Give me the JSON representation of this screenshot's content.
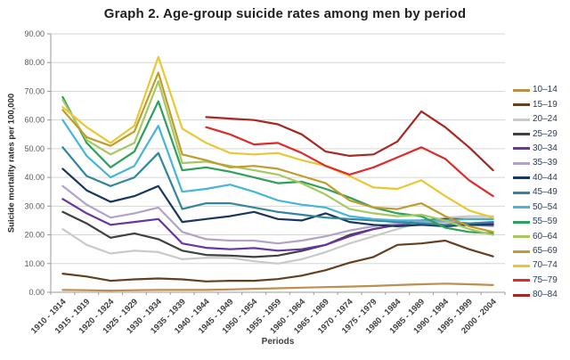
{
  "chart_data": {
    "type": "line",
    "title": "Graph 2. Age-group suicide rates among men by period",
    "xlabel": "Periods",
    "ylabel": "Suicide mortality rates per 100,000",
    "ylim": [
      0,
      90
    ],
    "grid": true,
    "legend_position": "right",
    "y_tick_labels": [
      "0.00",
      "10.00",
      "20.00",
      "30.00",
      "40.00",
      "50.00",
      "60.00",
      "70.00",
      "80.00",
      "90.00"
    ],
    "categories": [
      "1910 - 1914",
      "1915 - 1919",
      "1920 - 1924",
      "1925 - 1929",
      "1930 - 1934",
      "1935 - 1939",
      "1940 - 1944",
      "1945 - 1949",
      "1950 - 1954",
      "1955 - 1959",
      "1960 - 1964",
      "1965 - 1969",
      "1970 - 1974",
      "1975 - 1979",
      "1980 - 1984",
      "1985 - 1989",
      "1990 - 1994",
      "1995 - 1999",
      "2000 - 2004"
    ],
    "series": [
      {
        "name": "10–14",
        "color": "#bd8e4e",
        "values": [
          0.8,
          0.7,
          0.6,
          0.7,
          0.8,
          0.8,
          0.8,
          1.0,
          1.2,
          1.4,
          1.6,
          1.8,
          2.0,
          2.2,
          2.5,
          2.8,
          3.0,
          2.8,
          2.5
        ]
      },
      {
        "name": "15–19",
        "color": "#63401f",
        "values": [
          6.5,
          5.5,
          4.0,
          4.5,
          4.8,
          4.5,
          3.8,
          4.0,
          4.0,
          4.6,
          5.8,
          7.7,
          10.3,
          12.3,
          16.5,
          17.0,
          18.0,
          15.0,
          12.5
        ]
      },
      {
        "name": "20–24",
        "color": "#c9c9c9",
        "values": [
          22.0,
          16.5,
          13.5,
          14.5,
          14.0,
          11.5,
          12.0,
          12.0,
          10.8,
          10.0,
          11.5,
          14.0,
          17.0,
          19.5,
          22.0,
          24.5,
          26.0,
          26.5,
          26.5
        ]
      },
      {
        "name": "25–29",
        "color": "#404040",
        "values": [
          28.0,
          24.0,
          19.0,
          20.5,
          18.5,
          14.5,
          13.0,
          12.8,
          12.3,
          12.8,
          14.4,
          16.5,
          20.0,
          22.0,
          23.5,
          25.0,
          25.5,
          25.5,
          25.5
        ]
      },
      {
        "name": "30–34",
        "color": "#6a35a0",
        "values": [
          32.5,
          27.5,
          23.5,
          24.5,
          25.5,
          17.0,
          15.5,
          15.0,
          15.4,
          14.5,
          15.0,
          16.5,
          19.5,
          22.0,
          23.5,
          24.5,
          24.5,
          24.0,
          24.0
        ]
      },
      {
        "name": "35–39",
        "color": "#b3a2c7",
        "values": [
          37.0,
          30.5,
          26.0,
          27.5,
          29.5,
          21.0,
          18.5,
          18.0,
          18.0,
          17.0,
          18.0,
          19.5,
          21.5,
          23.0,
          24.0,
          24.5,
          24.5,
          23.5,
          23.0
        ]
      },
      {
        "name": "40–44",
        "color": "#17375d",
        "values": [
          43.0,
          35.5,
          31.5,
          33.5,
          37.0,
          24.5,
          25.5,
          26.5,
          28.0,
          25.5,
          25.0,
          27.5,
          24.5,
          23.5,
          23.0,
          23.5,
          23.0,
          23.5,
          23.5
        ]
      },
      {
        "name": "45–49",
        "color": "#31859c",
        "values": [
          50.5,
          40.5,
          37.0,
          40.0,
          48.5,
          29.0,
          31.0,
          31.0,
          29.5,
          28.0,
          27.0,
          26.0,
          25.5,
          25.0,
          24.5,
          24.0,
          23.5,
          24.0,
          24.5
        ]
      },
      {
        "name": "50–54",
        "color": "#45b5d8",
        "values": [
          60.0,
          47.5,
          40.0,
          44.0,
          58.0,
          35.0,
          36.0,
          37.5,
          35.0,
          32.0,
          30.5,
          29.5,
          26.5,
          25.5,
          25.0,
          25.0,
          25.0,
          25.5,
          25.5
        ]
      },
      {
        "name": "55–59",
        "color": "#2fa05a",
        "values": [
          68.0,
          52.0,
          43.5,
          49.0,
          66.5,
          42.5,
          43.5,
          42.0,
          40.0,
          38.0,
          38.5,
          36.0,
          33.0,
          29.5,
          27.5,
          26.5,
          22.5,
          21.0,
          20.5
        ]
      },
      {
        "name": "60–64",
        "color": "#a6c85f",
        "values": [
          67.0,
          53.0,
          48.0,
          52.0,
          73.5,
          45.0,
          45.5,
          44.0,
          42.5,
          41.0,
          38.0,
          34.0,
          29.0,
          27.5,
          26.5,
          27.0,
          25.0,
          22.0,
          20.0
        ]
      },
      {
        "name": "65–69",
        "color": "#c09c2c",
        "values": [
          63.5,
          54.0,
          51.0,
          56.0,
          76.5,
          48.0,
          46.0,
          43.5,
          44.0,
          43.0,
          40.5,
          38.0,
          32.0,
          29.5,
          29.0,
          31.0,
          26.5,
          23.0,
          21.0
        ]
      },
      {
        "name": "70–74",
        "color": "#e8c835",
        "values": [
          64.5,
          57.5,
          52.0,
          58.0,
          82.0,
          57.0,
          52.0,
          48.5,
          48.0,
          48.5,
          46.0,
          44.0,
          40.5,
          36.5,
          36.0,
          39.0,
          33.5,
          28.5,
          26.0
        ]
      },
      {
        "name": "75–79",
        "color": "#dd2c2c",
        "values": [
          null,
          null,
          null,
          null,
          null,
          null,
          57.5,
          55.0,
          51.5,
          52.0,
          48.5,
          44.0,
          41.0,
          43.5,
          47.0,
          50.5,
          46.5,
          39.0,
          33.5
        ]
      },
      {
        "name": "80–84",
        "color": "#a52822",
        "values": [
          null,
          null,
          null,
          null,
          null,
          null,
          61.0,
          60.5,
          60.0,
          58.5,
          55.0,
          49.0,
          47.5,
          48.0,
          52.5,
          63.0,
          57.5,
          50.5,
          42.5
        ]
      }
    ]
  },
  "colors": {
    "grid": "#d6d6d6",
    "axis": "#9a9a9a",
    "title_text": "#1f1f1f",
    "tick_text": "#595959",
    "xtick_text": "#3f3f3f",
    "legend_text": "#2b3a55"
  }
}
